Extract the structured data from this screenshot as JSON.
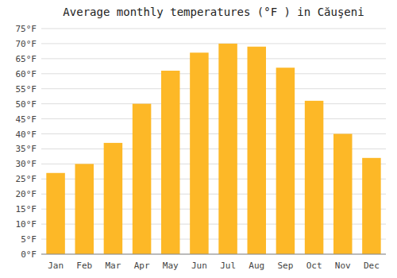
{
  "chart_data": {
    "type": "bar",
    "title": "Average monthly temperatures (°F ) in Căuşeni",
    "categories": [
      "Jan",
      "Feb",
      "Mar",
      "Apr",
      "May",
      "Jun",
      "Jul",
      "Aug",
      "Sep",
      "Oct",
      "Nov",
      "Dec"
    ],
    "values": [
      27,
      30,
      37,
      50,
      61,
      67,
      70,
      69,
      62,
      51,
      40,
      32
    ],
    "color": "#FDB827",
    "ylim": [
      0,
      75
    ],
    "yticks": [
      {
        "value": 0,
        "label": "0°F"
      },
      {
        "value": 5,
        "label": "5°F"
      },
      {
        "value": 10,
        "label": "10°F"
      },
      {
        "value": 15,
        "label": "15°F"
      },
      {
        "value": 20,
        "label": "20°F"
      },
      {
        "value": 25,
        "label": "25°F"
      },
      {
        "value": 30,
        "label": "30°F"
      },
      {
        "value": 35,
        "label": "35°F"
      },
      {
        "value": 40,
        "label": "40°F"
      },
      {
        "value": 45,
        "label": "45°F"
      },
      {
        "value": 50,
        "label": "50°F"
      },
      {
        "value": 55,
        "label": "55°F"
      },
      {
        "value": 60,
        "label": "60°F"
      },
      {
        "value": 65,
        "label": "65°F"
      },
      {
        "value": 70,
        "label": "70°F"
      },
      {
        "value": 75,
        "label": "75°F"
      }
    ],
    "grid": true
  }
}
